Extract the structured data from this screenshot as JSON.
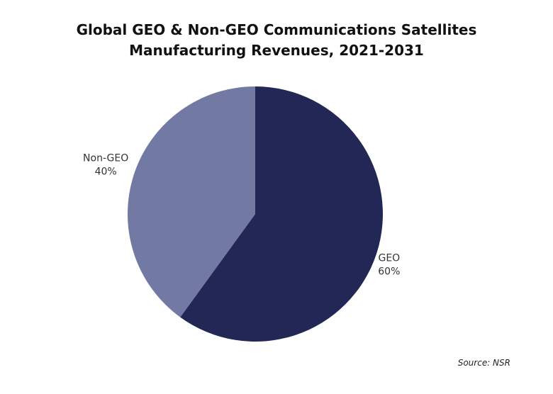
{
  "chart_data": {
    "type": "pie",
    "title_lines": [
      "Global GEO & Non-GEO Communications Satellites",
      "Manufacturing Revenues, 2021-2031"
    ],
    "slices": [
      {
        "label": "GEO",
        "value": 60,
        "display": "60%",
        "color": "#222755"
      },
      {
        "label": "Non-GEO",
        "value": 40,
        "display": "40%",
        "color": "#727aa3"
      }
    ],
    "start_angle_deg": 0,
    "direction": "clockwise",
    "legend": "none",
    "source": "Source: NSR"
  }
}
